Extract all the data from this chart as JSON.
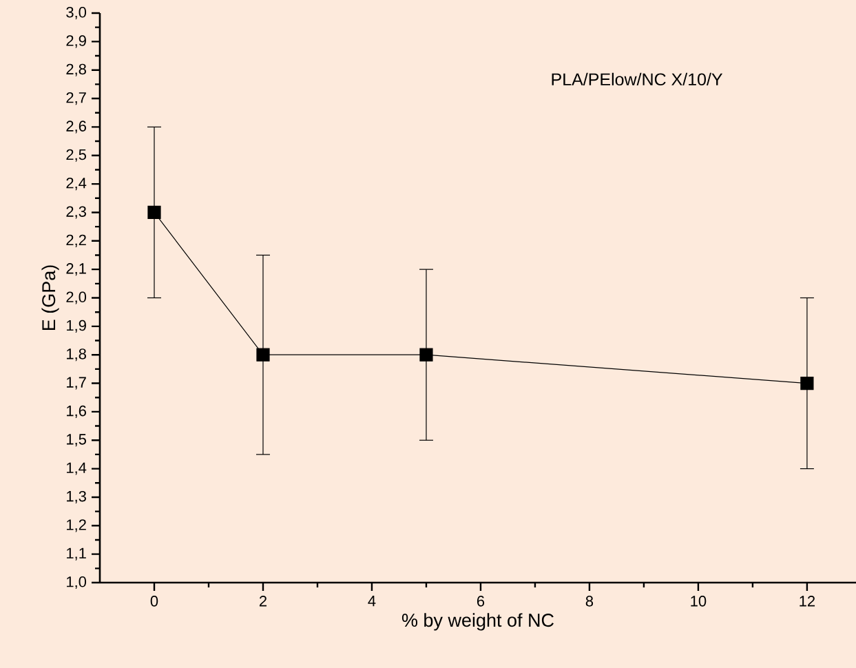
{
  "chart_data": {
    "type": "line",
    "xlabel": "% by weight of NC",
    "ylabel": "E (GPa)",
    "annotations": [
      "PLA/PElow/NC X/10/Y"
    ],
    "x": [
      0,
      2,
      5,
      12
    ],
    "series": [
      {
        "color": "#000000",
        "values": [
          2.3,
          1.8,
          1.8,
          1.7
        ],
        "errors": [
          [
            2.0,
            2.6
          ],
          [
            1.45,
            2.15
          ],
          [
            1.5,
            2.1
          ],
          [
            1.4,
            2.0
          ]
        ]
      }
    ],
    "marker": "square",
    "line_style": "solid",
    "xlim": [
      -1,
      12.9
    ],
    "xticks": [
      0,
      2,
      4,
      6,
      8,
      10,
      12
    ],
    "ylim": [
      1.0,
      3.0
    ],
    "yticks": [
      {
        "value": 1.0,
        "label": "1,0"
      },
      {
        "value": 1.1,
        "label": "1,1"
      },
      {
        "value": 1.2,
        "label": "1,2"
      },
      {
        "value": 1.3,
        "label": "1,3"
      },
      {
        "value": 1.4,
        "label": "1,4"
      },
      {
        "value": 1.5,
        "label": "1,5"
      },
      {
        "value": 1.6,
        "label": "1,6"
      },
      {
        "value": 1.7,
        "label": "1,7"
      },
      {
        "value": 1.8,
        "label": "1,8"
      },
      {
        "value": 1.9,
        "label": "1,9"
      },
      {
        "value": 2.0,
        "label": "2,0"
      },
      {
        "value": 2.1,
        "label": "2,1"
      },
      {
        "value": 2.2,
        "label": "2,2"
      },
      {
        "value": 2.3,
        "label": "2,3"
      },
      {
        "value": 2.4,
        "label": "2,4"
      },
      {
        "value": 2.5,
        "label": "2,5"
      },
      {
        "value": 2.6,
        "label": "2,6"
      },
      {
        "value": 2.7,
        "label": "2,7"
      },
      {
        "value": 2.8,
        "label": "2,8"
      },
      {
        "value": 2.9,
        "label": "2,9"
      },
      {
        "value": 3.0,
        "label": "3,0"
      }
    ]
  }
}
